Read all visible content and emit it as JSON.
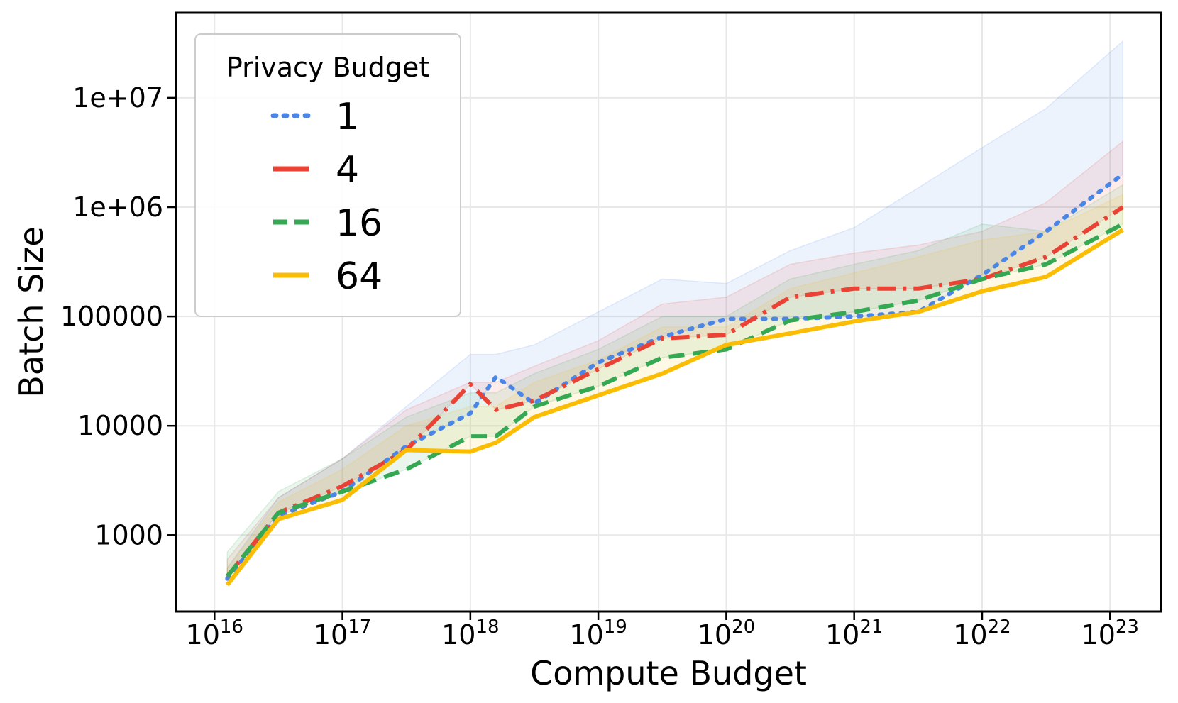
{
  "chart_data": {
    "type": "line",
    "xlabel": "Compute Budget",
    "ylabel": "Batch Size",
    "x_scale": "log",
    "y_scale": "log",
    "xlim": [
      5000000000000000.0,
      2.5e+23
    ],
    "ylim": [
      200,
      60000000
    ],
    "grid": true,
    "legend": {
      "title": "Privacy Budget",
      "position": "top-left"
    },
    "x_ticks": [
      {
        "value": 1e+16,
        "base": "10",
        "exp": "16"
      },
      {
        "value": 1e+17,
        "base": "10",
        "exp": "17"
      },
      {
        "value": 1e+18,
        "base": "10",
        "exp": "18"
      },
      {
        "value": 1e+19,
        "base": "10",
        "exp": "19"
      },
      {
        "value": 1e+20,
        "base": "10",
        "exp": "20"
      },
      {
        "value": 1e+21,
        "base": "10",
        "exp": "21"
      },
      {
        "value": 1e+22,
        "base": "10",
        "exp": "22"
      },
      {
        "value": 1e+23,
        "base": "10",
        "exp": "23"
      }
    ],
    "y_ticks": [
      {
        "value": 1000,
        "label": "1000"
      },
      {
        "value": 10000,
        "label": "10000"
      },
      {
        "value": 100000,
        "label": "100000"
      },
      {
        "value": 1000000,
        "label": "1e+06"
      },
      {
        "value": 10000000,
        "label": "1e+07"
      }
    ],
    "log10_x": [
      16.1,
      16.5,
      17.0,
      17.5,
      18.0,
      18.2,
      18.5,
      19.0,
      19.5,
      20.0,
      20.5,
      21.0,
      21.5,
      22.0,
      22.5,
      23.1
    ],
    "series": [
      {
        "name": "1",
        "color": "#4a86e8",
        "dash": "dotted",
        "values": [
          400,
          1500,
          2500,
          6500,
          13000,
          28000,
          16000,
          38000,
          65000,
          95000,
          95000,
          100000,
          110000,
          240000,
          600000,
          2000000
        ],
        "band_upper": [
          500,
          2200,
          5000,
          15000,
          45000,
          45000,
          55000,
          110000,
          220000,
          200000,
          400000,
          650000,
          1500000,
          3500000,
          8000000,
          33000000
        ]
      },
      {
        "name": "4",
        "color": "#ea4335",
        "dash": "dashdot",
        "values": [
          420,
          1600,
          2800,
          6000,
          24000,
          14000,
          17000,
          33000,
          63000,
          68000,
          150000,
          180000,
          180000,
          220000,
          350000,
          1000000
        ],
        "band_upper": [
          600,
          2200,
          5000,
          14000,
          25000,
          25000,
          35000,
          60000,
          130000,
          150000,
          300000,
          380000,
          450000,
          600000,
          1100000,
          4000000
        ]
      },
      {
        "name": "16",
        "color": "#34a853",
        "dash": "dashed",
        "values": [
          420,
          1600,
          2500,
          4000,
          8000,
          8000,
          15000,
          23000,
          42000,
          50000,
          92000,
          110000,
          140000,
          220000,
          300000,
          700000
        ],
        "band_upper": [
          700,
          2500,
          5000,
          12000,
          20000,
          20000,
          30000,
          50000,
          100000,
          100000,
          220000,
          300000,
          400000,
          700000,
          600000,
          1600000
        ]
      },
      {
        "name": "64",
        "color": "#fbbc04",
        "dash": "solid",
        "values": [
          350,
          1400,
          2100,
          6000,
          5800,
          7000,
          12000,
          19000,
          30000,
          55000,
          70000,
          90000,
          110000,
          170000,
          230000,
          620000
        ],
        "band_upper": [
          500,
          2000,
          4000,
          10000,
          15000,
          15000,
          25000,
          40000,
          80000,
          80000,
          180000,
          250000,
          350000,
          500000,
          600000,
          1300000
        ]
      }
    ]
  }
}
